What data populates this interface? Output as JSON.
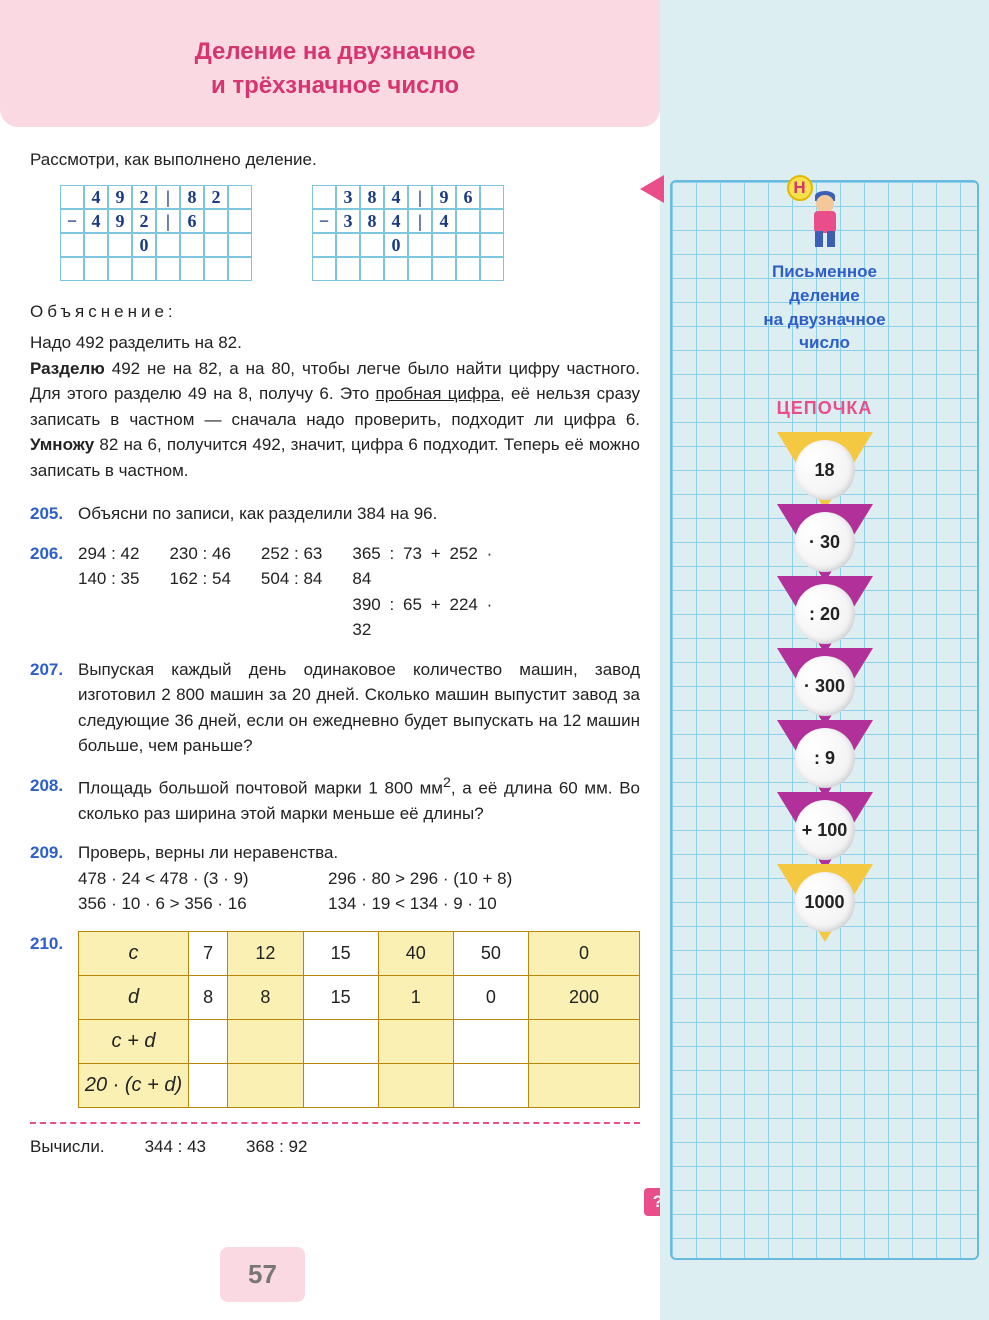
{
  "header": {
    "line1": "Деление на двузначное",
    "line2": "и трёхзначное число"
  },
  "intro": "Рассмотри, как выполнено деление.",
  "explanation_label": "Объяснение:",
  "explanation_line1": "Надо 492 разделить на 82.",
  "body_text_parts": {
    "p1": "Разделю",
    "p2": " 492 не на 82, а на 80, чтобы легче было найти цифру частного. Для этого разделю 49 на 8, получу 6. Это ",
    "p3": "пробная цифра",
    "p4": ", её нельзя сразу записать в частном — сначала надо проверить, подходит ли цифра 6. ",
    "p5": "Умножу",
    "p6": " 82 на 6, получится 492, значит, цифра 6 подходит. Теперь её можно записать в частном."
  },
  "exercises": {
    "e205": {
      "num": "205.",
      "text": "Объясни по записи, как разделили 384 на 96."
    },
    "e206": {
      "num": "206.",
      "rows": [
        [
          "294 : 42",
          "230 : 46",
          "252 : 63",
          "365 : 73 + 252 · 84"
        ],
        [
          "140 : 35",
          "162 : 54",
          "504 : 84",
          "390 : 65 + 224 · 32"
        ]
      ]
    },
    "e207": {
      "num": "207.",
      "text": "Выпуская каждый день одинаковое количество машин, завод изготовил 2 800 машин за 20 дней. Сколько машин выпустит завод за следующие 36 дней, если он ежедневно будет выпускать на 12 машин больше, чем раньше?"
    },
    "e208": {
      "num": "208.",
      "text_pre": "Площадь большой почтовой марки 1 800 мм",
      "sup": "2",
      "text_post": ", а её длина 60 мм. Во сколько раз ширина этой марки меньше её длины?"
    },
    "e209": {
      "num": "209.",
      "label": "Проверь, верны ли неравенства.",
      "rows": [
        [
          "478 · 24 < 478 · (3 · 9)",
          "296 · 80 > 296 · (10 + 8)"
        ],
        [
          "356 · 10 · 6 > 356 · 16",
          "134 · 19 < 134 · 9 · 10"
        ]
      ]
    },
    "e210": {
      "num": "210.",
      "headers": [
        "c",
        "d",
        "c + d",
        "20 · (c + d)"
      ],
      "row_c": [
        "7",
        "12",
        "15",
        "40",
        "50",
        "0"
      ],
      "row_d": [
        "8",
        "8",
        "15",
        "1",
        "0",
        "200"
      ],
      "yellow_cols": [
        1,
        3,
        5
      ]
    }
  },
  "footer": {
    "label": "Вычисли.",
    "v1": "344 : 43",
    "v2": "368 : 92"
  },
  "page_number": "57",
  "sidebar": {
    "title_l1": "Письменное",
    "title_l2": "деление",
    "title_l3": "на двузначное",
    "title_l4": "число",
    "chain_label": "ЦЕПОЧКА",
    "chain": [
      {
        "val": "18",
        "color": "yellow"
      },
      {
        "val": "· 30",
        "color": "magenta"
      },
      {
        "val": ": 20",
        "color": "magenta"
      },
      {
        "val": "· 300",
        "color": "magenta"
      },
      {
        "val": ": 9",
        "color": "magenta"
      },
      {
        "val": "+ 100",
        "color": "magenta"
      },
      {
        "val": "1000",
        "color": "yellow"
      }
    ],
    "h_badge": "Н"
  },
  "q_mark": "?",
  "colors": {
    "pink_header_bg": "#fbd9e3",
    "pink_text": "#d6356f",
    "blue_text": "#2d5ec9",
    "magenta": "#e94d8a",
    "grid_line": "#7ec5de",
    "table_yellow": "#faf0b3",
    "table_border": "#b8860b",
    "sidebar_bg": "#dceef2",
    "tri_yellow": "#f5c842",
    "tri_magenta": "#b23099"
  },
  "division_work": {
    "grid1": [
      [
        "",
        "4",
        "9",
        "2",
        "|",
        "8",
        "2",
        ""
      ],
      [
        "−",
        "4",
        "9",
        "2",
        "|",
        "6",
        "",
        ""
      ],
      [
        "",
        "",
        "",
        "0",
        "",
        "",
        "",
        ""
      ]
    ],
    "grid2": [
      [
        "",
        "3",
        "8",
        "4",
        "|",
        "9",
        "6",
        ""
      ],
      [
        "−",
        "3",
        "8",
        "4",
        "|",
        "4",
        "",
        ""
      ],
      [
        "",
        "",
        "",
        "0",
        "",
        "",
        "",
        ""
      ]
    ]
  }
}
